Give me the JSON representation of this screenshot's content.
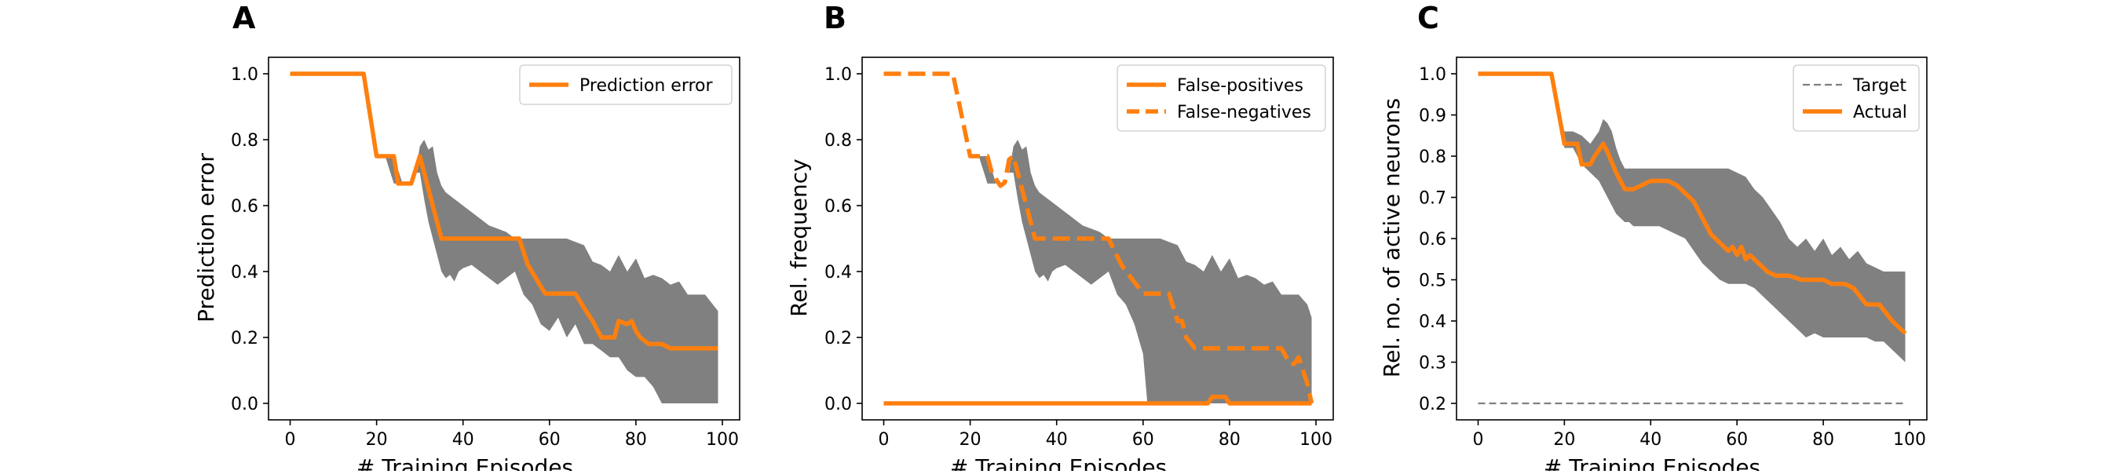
{
  "colors": {
    "line": "#ff7f0e",
    "band": "#808080",
    "target": "#808080",
    "axes": "#000000"
  },
  "chart_data": [
    {
      "panel": "A",
      "type": "line",
      "xlabel": "# Training Episodes",
      "ylabel": "Prediction error",
      "xlim": [
        -5,
        104
      ],
      "ylim": [
        -0.05,
        1.05
      ],
      "xticks": [
        0,
        20,
        40,
        60,
        80,
        100
      ],
      "yticks": [
        0.0,
        0.2,
        0.4,
        0.6,
        0.8,
        1.0
      ],
      "tick_decimals": 1,
      "legend": "top-right",
      "series": [
        {
          "name": "Prediction error",
          "style": "solid",
          "legend": true,
          "x": [
            0,
            17,
            20,
            24,
            25,
            28,
            30,
            31,
            33,
            35,
            40,
            46,
            53,
            55,
            59,
            66,
            68,
            70,
            72,
            75,
            76,
            78,
            79,
            80,
            81,
            83,
            86,
            88,
            92,
            96,
            99
          ],
          "y": [
            1.0,
            1.0,
            0.75,
            0.75,
            0.667,
            0.667,
            0.75,
            0.7,
            0.6,
            0.5,
            0.5,
            0.5,
            0.5,
            0.42,
            0.333,
            0.333,
            0.29,
            0.25,
            0.2,
            0.2,
            0.25,
            0.24,
            0.25,
            0.22,
            0.2,
            0.18,
            0.18,
            0.167,
            0.167,
            0.167,
            0.167
          ]
        }
      ],
      "band": {
        "x": [
          17,
          20,
          22,
          24,
          26,
          28,
          29,
          30,
          31,
          32,
          33,
          34,
          35,
          36,
          37,
          38,
          39,
          40,
          42,
          44,
          46,
          48,
          50,
          52,
          54,
          56,
          58,
          60,
          62,
          64,
          66,
          68,
          70,
          72,
          74,
          76,
          78,
          80,
          82,
          84,
          86,
          88,
          90,
          92,
          94,
          96,
          99
        ],
        "upper": [
          1.0,
          0.75,
          0.75,
          0.75,
          0.667,
          0.667,
          0.7,
          0.78,
          0.8,
          0.77,
          0.78,
          0.7,
          0.66,
          0.64,
          0.63,
          0.62,
          0.61,
          0.6,
          0.58,
          0.56,
          0.54,
          0.53,
          0.52,
          0.5,
          0.5,
          0.5,
          0.5,
          0.5,
          0.5,
          0.5,
          0.49,
          0.48,
          0.43,
          0.42,
          0.4,
          0.45,
          0.4,
          0.44,
          0.38,
          0.39,
          0.38,
          0.36,
          0.37,
          0.33,
          0.33,
          0.33,
          0.28
        ],
        "lower": [
          1.0,
          0.75,
          0.75,
          0.667,
          0.667,
          0.667,
          0.7,
          0.7,
          0.62,
          0.55,
          0.5,
          0.45,
          0.4,
          0.38,
          0.39,
          0.37,
          0.4,
          0.41,
          0.42,
          0.4,
          0.38,
          0.36,
          0.38,
          0.4,
          0.33,
          0.3,
          0.24,
          0.22,
          0.26,
          0.2,
          0.24,
          0.18,
          0.18,
          0.16,
          0.14,
          0.14,
          0.1,
          0.08,
          0.08,
          0.05,
          0.0,
          0.0,
          0.0,
          0.0,
          0.0,
          0.0,
          0.0
        ]
      }
    },
    {
      "panel": "B",
      "type": "line",
      "xlabel": "# Training Episodes",
      "ylabel": "Rel. frequency",
      "xlim": [
        -5,
        104
      ],
      "ylim": [
        -0.05,
        1.05
      ],
      "xticks": [
        0,
        20,
        40,
        60,
        80,
        100
      ],
      "yticks": [
        0.0,
        0.2,
        0.4,
        0.6,
        0.8,
        1.0
      ],
      "tick_decimals": 1,
      "legend": "top-right",
      "series": [
        {
          "name": "False-positives",
          "style": "solid",
          "legend": true,
          "x": [
            0,
            75,
            76,
            79,
            80,
            99
          ],
          "y": [
            0.0,
            0.0,
            0.02,
            0.02,
            0.0,
            0.0
          ]
        },
        {
          "name": "False-negatives",
          "style": "dashed",
          "legend": true,
          "x": [
            0,
            16,
            20,
            24,
            25,
            27,
            28,
            29,
            30,
            31,
            33,
            35,
            40,
            47,
            52,
            55,
            60,
            66,
            68,
            69,
            70,
            72,
            75,
            78,
            82,
            86,
            90,
            92,
            94,
            95,
            96,
            98,
            99
          ],
          "y": [
            1.0,
            1.0,
            0.75,
            0.75,
            0.7,
            0.66,
            0.67,
            0.74,
            0.75,
            0.7,
            0.6,
            0.5,
            0.5,
            0.5,
            0.5,
            0.42,
            0.333,
            0.333,
            0.25,
            0.25,
            0.2,
            0.167,
            0.167,
            0.167,
            0.167,
            0.167,
            0.167,
            0.167,
            0.12,
            0.12,
            0.14,
            0.06,
            0.0
          ]
        }
      ],
      "band": {
        "x": [
          17,
          20,
          22,
          24,
          26,
          28,
          29,
          30,
          31,
          32,
          33,
          34,
          35,
          36,
          37,
          38,
          39,
          40,
          42,
          44,
          46,
          48,
          50,
          52,
          54,
          56,
          58,
          60,
          61,
          62,
          64,
          66,
          68,
          70,
          72,
          74,
          76,
          78,
          80,
          82,
          84,
          86,
          88,
          90,
          92,
          94,
          96,
          98,
          99
        ],
        "upper": [
          1.0,
          0.75,
          0.75,
          0.75,
          0.667,
          0.667,
          0.7,
          0.78,
          0.8,
          0.77,
          0.78,
          0.7,
          0.66,
          0.64,
          0.63,
          0.62,
          0.61,
          0.6,
          0.58,
          0.56,
          0.54,
          0.53,
          0.52,
          0.5,
          0.5,
          0.5,
          0.5,
          0.5,
          0.5,
          0.5,
          0.5,
          0.49,
          0.48,
          0.43,
          0.42,
          0.4,
          0.45,
          0.4,
          0.44,
          0.38,
          0.39,
          0.38,
          0.36,
          0.37,
          0.33,
          0.33,
          0.33,
          0.3,
          0.26
        ],
        "lower": [
          1.0,
          0.75,
          0.75,
          0.667,
          0.667,
          0.667,
          0.7,
          0.7,
          0.62,
          0.55,
          0.5,
          0.45,
          0.4,
          0.38,
          0.39,
          0.37,
          0.4,
          0.41,
          0.42,
          0.4,
          0.38,
          0.36,
          0.38,
          0.4,
          0.33,
          0.3,
          0.24,
          0.15,
          0.0,
          0.0,
          0.0,
          0.0,
          0.0,
          0.0,
          0.0,
          0.0,
          0.0,
          0.0,
          0.0,
          0.0,
          0.0,
          0.0,
          0.0,
          0.0,
          0.0,
          0.0,
          0.0,
          0.0,
          0.0
        ]
      }
    },
    {
      "panel": "C",
      "type": "line",
      "xlabel": "# Training Episodes",
      "ylabel": "Rel. no. of active neurons",
      "xlim": [
        -5,
        104
      ],
      "ylim": [
        0.16,
        1.04
      ],
      "xticks": [
        0,
        20,
        40,
        60,
        80,
        100
      ],
      "yticks": [
        0.2,
        0.3,
        0.4,
        0.5,
        0.6,
        0.7,
        0.8,
        0.9,
        1.0
      ],
      "tick_decimals": 1,
      "legend": "top-right",
      "series": [
        {
          "name": "Target",
          "style": "dashed-thin",
          "legend": true,
          "x": [
            0,
            99
          ],
          "y": [
            0.2,
            0.2
          ]
        },
        {
          "name": "Actual",
          "style": "solid",
          "legend": true,
          "x": [
            0,
            17,
            20,
            23,
            24,
            26,
            27,
            29,
            30,
            32,
            34,
            36,
            38,
            40,
            44,
            46,
            48,
            50,
            52,
            54,
            56,
            58,
            59,
            60,
            61,
            62,
            63,
            65,
            67,
            69,
            72,
            75,
            78,
            80,
            82,
            85,
            87,
            90,
            93,
            96,
            99
          ],
          "y": [
            1.0,
            1.0,
            0.83,
            0.83,
            0.78,
            0.78,
            0.8,
            0.83,
            0.81,
            0.76,
            0.72,
            0.72,
            0.73,
            0.74,
            0.74,
            0.73,
            0.71,
            0.69,
            0.65,
            0.61,
            0.59,
            0.57,
            0.58,
            0.56,
            0.58,
            0.55,
            0.56,
            0.54,
            0.52,
            0.51,
            0.51,
            0.5,
            0.5,
            0.5,
            0.49,
            0.49,
            0.48,
            0.44,
            0.44,
            0.4,
            0.37
          ]
        }
      ],
      "band": {
        "x": [
          17,
          20,
          22,
          24,
          26,
          28,
          29,
          30,
          31,
          32,
          33,
          34,
          35,
          36,
          38,
          40,
          42,
          44,
          46,
          48,
          50,
          52,
          54,
          56,
          58,
          60,
          62,
          64,
          66,
          68,
          70,
          72,
          74,
          76,
          78,
          80,
          82,
          84,
          86,
          88,
          90,
          92,
          94,
          96,
          99
        ],
        "upper": [
          1.0,
          0.86,
          0.86,
          0.85,
          0.83,
          0.86,
          0.89,
          0.88,
          0.86,
          0.82,
          0.79,
          0.77,
          0.77,
          0.77,
          0.77,
          0.77,
          0.77,
          0.77,
          0.77,
          0.77,
          0.77,
          0.77,
          0.77,
          0.77,
          0.77,
          0.76,
          0.75,
          0.72,
          0.7,
          0.67,
          0.64,
          0.6,
          0.58,
          0.6,
          0.57,
          0.6,
          0.56,
          0.58,
          0.55,
          0.57,
          0.54,
          0.53,
          0.52,
          0.52,
          0.52
        ],
        "lower": [
          1.0,
          0.82,
          0.82,
          0.78,
          0.76,
          0.74,
          0.72,
          0.7,
          0.68,
          0.66,
          0.65,
          0.64,
          0.64,
          0.63,
          0.63,
          0.63,
          0.63,
          0.62,
          0.61,
          0.6,
          0.57,
          0.54,
          0.52,
          0.5,
          0.49,
          0.49,
          0.49,
          0.48,
          0.46,
          0.44,
          0.42,
          0.4,
          0.38,
          0.36,
          0.37,
          0.36,
          0.36,
          0.36,
          0.36,
          0.36,
          0.36,
          0.35,
          0.35,
          0.33,
          0.3
        ]
      }
    }
  ]
}
